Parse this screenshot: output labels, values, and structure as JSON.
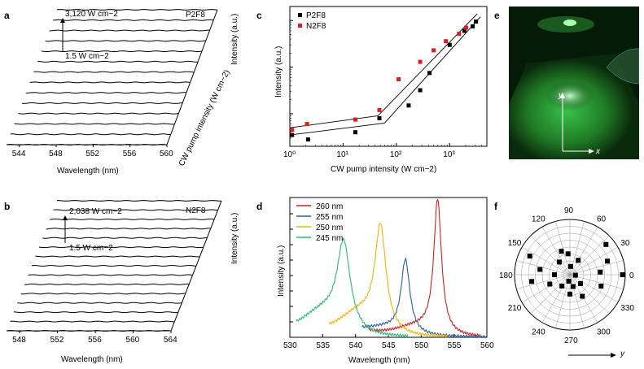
{
  "panel_labels": {
    "a": "a",
    "b": "b",
    "c": "c",
    "d": "d",
    "e": "e",
    "f": "f"
  },
  "chart_data": [
    {
      "id": "a",
      "type": "line",
      "sample": "P2F8",
      "xlabel": "Wavelength (nm)",
      "zlabel": "Intensity (a.u.)",
      "depth_label": "CW pump intensity (W cm−2)",
      "x_ticks": [
        "544",
        "548",
        "552",
        "556",
        "560"
      ],
      "annotations": [
        "3,120 W cm−2",
        "1.5 W cm−2"
      ],
      "peak_wavelength_nm": 556,
      "trace_count": 13,
      "peak_heights": [
        0.0,
        0.01,
        0.02,
        0.03,
        0.04,
        0.05,
        0.07,
        0.1,
        0.18,
        0.3,
        0.45,
        0.62,
        0.82,
        1.0
      ]
    },
    {
      "id": "b",
      "type": "line",
      "sample": "N2F8",
      "xlabel": "Wavelength (nm)",
      "zlabel": "Intensity (a.u.)",
      "x_ticks": [
        "548",
        "552",
        "556",
        "560",
        "564"
      ],
      "annotations": [
        "2,038 W cm−2",
        "1.5 W cm−2"
      ],
      "peak_wavelength_nm": 557,
      "trace_count": 14,
      "peak_heights": [
        0.0,
        0.01,
        0.02,
        0.03,
        0.04,
        0.05,
        0.06,
        0.08,
        0.12,
        0.2,
        0.32,
        0.48,
        0.66,
        0.84,
        1.0
      ]
    },
    {
      "id": "c",
      "type": "scatter",
      "xlabel": "CW pump intensity (W cm−2)",
      "ylabel": "Intensity (a.u.)",
      "xscale": "log",
      "yscale": "log",
      "xlim": [
        1,
        5000
      ],
      "x_ticks": [
        1,
        10,
        100,
        1000
      ],
      "x_tick_labels": [
        "10⁰",
        "10¹",
        "10²",
        "10³"
      ],
      "legend_position": "top-left",
      "series": [
        {
          "name": "P2F8",
          "color": "#000000",
          "points": [
            [
              1.1,
              0.035
            ],
            [
              2.2,
              0.028
            ],
            [
              17,
              0.04
            ],
            [
              48,
              0.08
            ],
            [
              170,
              0.15
            ],
            [
              280,
              0.32
            ],
            [
              420,
              0.75
            ],
            [
              1000,
              3.0
            ],
            [
              1900,
              6.0
            ],
            [
              2700,
              7.5
            ],
            [
              3120,
              9.5
            ]
          ]
        },
        {
          "name": "N2F8",
          "color": "#d42020",
          "points": [
            [
              1.1,
              0.045
            ],
            [
              2.1,
              0.06
            ],
            [
              17,
              0.075
            ],
            [
              48,
              0.12
            ],
            [
              110,
              0.55
            ],
            [
              280,
              1.3
            ],
            [
              500,
              2.3
            ],
            [
              850,
              3.6
            ],
            [
              1500,
              5.2
            ],
            [
              2038,
              7.0
            ]
          ]
        }
      ],
      "fit_lines": [
        {
          "color": "#000000",
          "points": [
            [
              1,
              0.035
            ],
            [
              60,
              0.063
            ],
            [
              3800,
              12
            ]
          ]
        },
        {
          "color": "#000000",
          "points": [
            [
              1,
              0.05
            ],
            [
              45,
              0.09
            ],
            [
              3300,
              14
            ]
          ]
        }
      ]
    },
    {
      "id": "d",
      "type": "line",
      "xlabel": "Wavelength (nm)",
      "ylabel": "Intensity (a.u.)",
      "xlim": [
        530,
        560
      ],
      "x_ticks": [
        530,
        535,
        540,
        545,
        550,
        555,
        560
      ],
      "legend_position": "top-left",
      "series": [
        {
          "name": "260 nm",
          "color": "#d42020",
          "center": 552.5,
          "width": 0.7,
          "amp": 0.95,
          "base_start": 542,
          "base_end": 559,
          "base_level": 0.06
        },
        {
          "name": "255 nm",
          "color": "#2a5d9f",
          "center": 547.6,
          "width": 0.8,
          "amp": 0.52,
          "base_start": 541,
          "base_end": 560,
          "base_level": 0.04
        },
        {
          "name": "250 nm",
          "color": "#f2b400",
          "center": 543.8,
          "width": 1.0,
          "amp": 0.72,
          "base_start": 536,
          "base_end": 554,
          "base_level": 0.15
        },
        {
          "name": "245 nm",
          "color": "#2eb872",
          "center": 538.2,
          "width": 1.2,
          "amp": 0.6,
          "base_start": 531,
          "base_end": 548,
          "base_level": 0.15
        }
      ]
    },
    {
      "id": "f",
      "type": "scatter",
      "coordinate_system": "polar",
      "angle_ticks": [
        0,
        30,
        60,
        90,
        120,
        150,
        180,
        210,
        240,
        270,
        300,
        330
      ],
      "axis_label": "y",
      "points": [
        {
          "angle": 5,
          "r": 0.55
        },
        {
          "angle": 20,
          "r": 0.72
        },
        {
          "angle": 40,
          "r": 0.85
        },
        {
          "angle": 60,
          "r": 0.3
        },
        {
          "angle": 85,
          "r": 0.15
        },
        {
          "angle": 110,
          "r": 0.45
        },
        {
          "angle": 130,
          "r": 0.3
        },
        {
          "angle": 155,
          "r": 0.8
        },
        {
          "angle": 170,
          "r": 0.55
        },
        {
          "angle": 180,
          "r": 0.28
        },
        {
          "angle": 190,
          "r": 0.7
        },
        {
          "angle": 205,
          "r": 0.4
        },
        {
          "angle": 235,
          "r": 0.25
        },
        {
          "angle": 260,
          "r": 0.12
        },
        {
          "angle": 285,
          "r": 0.22
        },
        {
          "angle": 300,
          "r": 0.45
        },
        {
          "angle": 320,
          "r": 0.25
        },
        {
          "angle": 340,
          "r": 0.6
        },
        {
          "angle": 0,
          "r": 0.95
        },
        {
          "angle": 355,
          "r": 0.1
        },
        {
          "angle": 95,
          "r": 0.38
        },
        {
          "angle": 270,
          "r": 0.35
        }
      ]
    }
  ],
  "image_e": {
    "axis_y": "y",
    "axis_x": "x"
  }
}
